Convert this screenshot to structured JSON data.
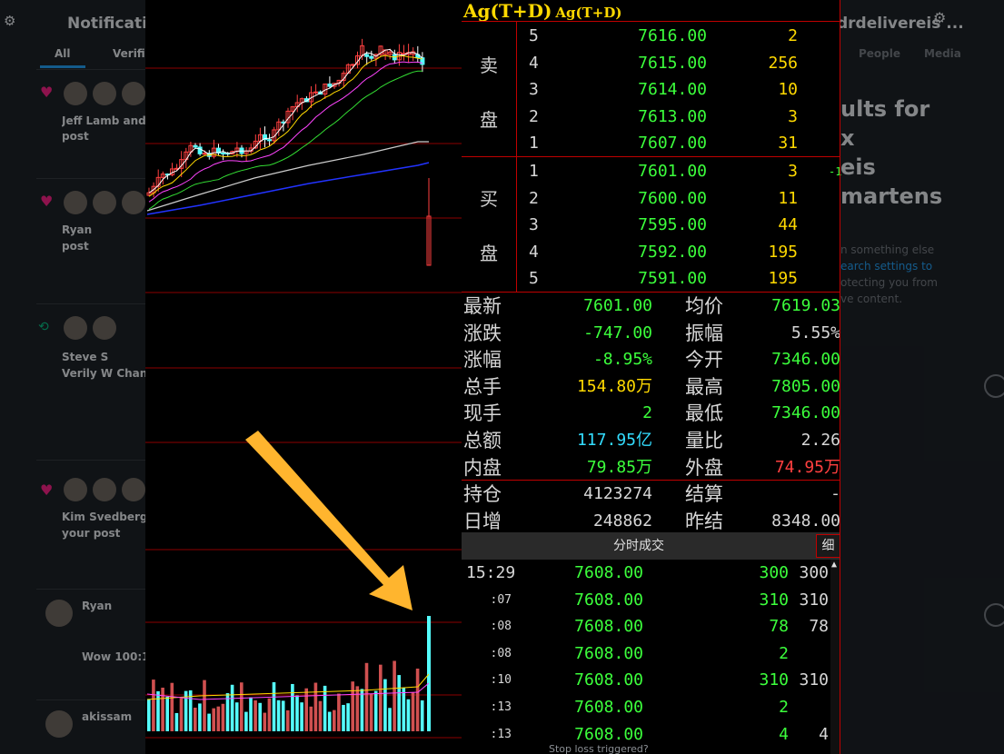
{
  "background": {
    "left": {
      "header": "Notifications",
      "tabs": [
        "All",
        "Verified"
      ],
      "items": [
        {
          "text": "Jeff Lamb and",
          "sub": "post"
        },
        {
          "text": "Ryan",
          "sub": "post"
        },
        {
          "text": "Steve S",
          "sub": "Verily W Chan"
        },
        {
          "text": "Kim Svedberg",
          "sub": "your post"
        },
        {
          "text": "Ryan",
          "sub": "Wow 100:1"
        },
        {
          "text": "akissam",
          "sub": ""
        }
      ]
    },
    "right": {
      "title": "drdelivereis ...",
      "tabs": [
        "People",
        "Media"
      ],
      "heading_lines": [
        "ults for",
        "x",
        "eis",
        "martens"
      ],
      "hint_lines": [
        "n something else",
        "earch settings to",
        "otecting you from",
        "ve content."
      ]
    },
    "caption": "Stop loss triggered?"
  },
  "quote": {
    "title": "Ag(T+D)",
    "subtitle": "Ag(T+D)",
    "sell_label": [
      "卖",
      "盘"
    ],
    "buy_label": [
      "买",
      "盘"
    ],
    "asks": [
      {
        "level": "5",
        "price": "7616.00",
        "vol": "2"
      },
      {
        "level": "4",
        "price": "7615.00",
        "vol": "256"
      },
      {
        "level": "3",
        "price": "7614.00",
        "vol": "10"
      },
      {
        "level": "2",
        "price": "7613.00",
        "vol": "3"
      },
      {
        "level": "1",
        "price": "7607.00",
        "vol": "31"
      }
    ],
    "bids": [
      {
        "level": "1",
        "price": "7601.00",
        "vol": "3",
        "mark": "-1"
      },
      {
        "level": "2",
        "price": "7600.00",
        "vol": "11",
        "mark": ""
      },
      {
        "level": "3",
        "price": "7595.00",
        "vol": "44",
        "mark": ""
      },
      {
        "level": "4",
        "price": "7592.00",
        "vol": "195",
        "mark": ""
      },
      {
        "level": "5",
        "price": "7591.00",
        "vol": "195",
        "mark": ""
      }
    ],
    "stats": [
      {
        "l1": "最新",
        "v1": "7601.00",
        "c1": "#3cff3c",
        "l2": "均价",
        "v2": "7619.03",
        "c2": "#3cff3c"
      },
      {
        "l1": "涨跌",
        "v1": "-747.00",
        "c1": "#3cff3c",
        "l2": "振幅",
        "v2": "5.55%",
        "c2": "#d7d7d7"
      },
      {
        "l1": "涨幅",
        "v1": "-8.95%",
        "c1": "#3cff3c",
        "l2": "今开",
        "v2": "7346.00",
        "c2": "#3cff3c"
      },
      {
        "l1": "总手",
        "v1": "154.80万",
        "c1": "#ffd900",
        "l2": "最高",
        "v2": "7805.00",
        "c2": "#3cff3c"
      },
      {
        "l1": "现手",
        "v1": "2",
        "c1": "#3cff3c",
        "l2": "最低",
        "v2": "7346.00",
        "c2": "#3cff3c"
      },
      {
        "l1": "总额",
        "v1": "117.95亿",
        "c1": "#33ddff",
        "l2": "量比",
        "v2": "2.26",
        "c2": "#d7d7d7"
      },
      {
        "l1": "内盘",
        "v1": "79.85万",
        "c1": "#3cff3c",
        "l2": "外盘",
        "v2": "74.95万",
        "c2": "#ff4040"
      }
    ],
    "stats2": [
      {
        "l1": "持仓",
        "v1": "4123274",
        "c1": "#d7d7d7",
        "l2": "结算",
        "v2": "-",
        "c2": "#d7d7d7"
      },
      {
        "l1": "日增",
        "v1": "248862",
        "c1": "#d7d7d7",
        "l2": "昨结",
        "v2": "8348.00",
        "c2": "#d7d7d7"
      }
    ],
    "trades_header": "分时成交",
    "trades_button": "细",
    "trades": [
      {
        "time": "15:29",
        "price": "7608.00",
        "v1": "300",
        "v2": "300"
      },
      {
        "time": ":07",
        "price": "7608.00",
        "v1": "310",
        "v2": "310"
      },
      {
        "time": ":08",
        "price": "7608.00",
        "v1": "78",
        "v2": "78"
      },
      {
        "time": ":08",
        "price": "7608.00",
        "v1": "2",
        "v2": ""
      },
      {
        "time": ":10",
        "price": "7608.00",
        "v1": "310",
        "v2": "310"
      },
      {
        "time": ":13",
        "price": "7608.00",
        "v1": "2",
        "v2": ""
      },
      {
        "time": ":13",
        "price": "7608.00",
        "v1": "4",
        "v2": "4"
      }
    ]
  },
  "colors": {
    "up": "#ff4040",
    "down": "#3cff3c",
    "volume": "#55ffff",
    "grid": "#8b0000",
    "arrow": "#ffb52e",
    "ma": [
      "#ffffff",
      "#ffd900",
      "#ff44ff",
      "#33dd33",
      "#cccccc",
      "#2233ff"
    ]
  }
}
